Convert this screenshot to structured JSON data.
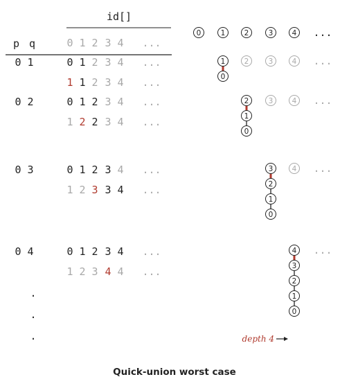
{
  "title": "id[]",
  "header": {
    "p": "p",
    "q": "q",
    "indices": [
      "0",
      "1",
      "2",
      "3",
      "4",
      "..."
    ]
  },
  "forest_top": {
    "nodes": [
      "0",
      "1",
      "2",
      "3",
      "4"
    ],
    "ellipsis": "..."
  },
  "steps": [
    {
      "pq": "0 1",
      "before": [
        "0",
        "1",
        "2",
        "3",
        "4",
        "..."
      ],
      "before_active": 2,
      "after": [
        "1",
        "1",
        "2",
        "3",
        "4",
        "..."
      ],
      "after_changed": 0,
      "after_active_to": 1,
      "chain": [
        "1",
        "0"
      ],
      "grey": [
        "2",
        "3",
        "4"
      ]
    },
    {
      "pq": "0 2",
      "before": [
        "0",
        "1",
        "2",
        "3",
        "4",
        "..."
      ],
      "before_active": 3,
      "after": [
        "1",
        "2",
        "2",
        "3",
        "4",
        "..."
      ],
      "after_changed": 1,
      "after_active_to": 2,
      "chain": [
        "2",
        "1",
        "0"
      ],
      "grey": [
        "3",
        "4"
      ]
    },
    {
      "pq": "0 3",
      "before": [
        "0",
        "1",
        "2",
        "3",
        "4",
        "..."
      ],
      "before_active": 4,
      "after": [
        "1",
        "2",
        "3",
        "3",
        "4",
        "..."
      ],
      "after_changed": 2,
      "after_active_to": 4,
      "chain": [
        "3",
        "2",
        "1",
        "0"
      ],
      "grey": [
        "4"
      ]
    },
    {
      "pq": "0 4",
      "before": [
        "0",
        "1",
        "2",
        "3",
        "4",
        "..."
      ],
      "before_active": 5,
      "after": [
        "1",
        "2",
        "3",
        "4",
        "4",
        "..."
      ],
      "after_changed": 3,
      "after_active_to": 3,
      "chain": [
        "4",
        "3",
        "2",
        "1",
        "0"
      ],
      "grey": []
    }
  ],
  "dots": [
    ".",
    ".",
    "."
  ],
  "depth_label": "depth 4",
  "caption": "Quick-union worst case",
  "colors": {
    "ink": "#222222",
    "grey": "#a8a8a8",
    "red": "#b03a2e"
  }
}
